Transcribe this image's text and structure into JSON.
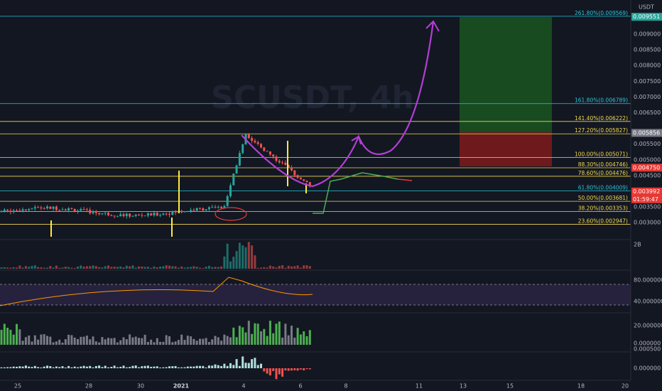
{
  "header": {
    "currency": "USDT",
    "watermark": "SCUSDT, 4h"
  },
  "price_axis": [
    {
      "value": 0.009,
      "label": "0.009000"
    },
    {
      "value": 0.0085,
      "label": "0.008500"
    },
    {
      "value": 0.008,
      "label": "0.008000"
    },
    {
      "value": 0.0075,
      "label": "0.007500"
    },
    {
      "value": 0.007,
      "label": "0.007000"
    },
    {
      "value": 0.0065,
      "label": "0.006500"
    },
    {
      "value": 0.0055,
      "label": "0.005500"
    },
    {
      "value": 0.005,
      "label": "0.005000"
    },
    {
      "value": 0.0045,
      "label": "0.004500"
    },
    {
      "value": 0.0035,
      "label": "0.003500"
    },
    {
      "value": 0.003,
      "label": "0.003000"
    }
  ],
  "price_tags": [
    {
      "price": 0.009551,
      "label": "0.009551",
      "color": "#26a69a"
    },
    {
      "price": 0.005856,
      "label": "0.005856",
      "color": "#787b86"
    },
    {
      "price": 0.00475,
      "label": "0.004750",
      "color": "#e53935"
    },
    {
      "price": 0.003992,
      "label": "0.003992",
      "color": "#e53935",
      "countdown": "01:59:47"
    }
  ],
  "fib_levels": [
    {
      "label": "261.80%(0.009569)",
      "price": 0.009569,
      "color": "#26c6da"
    },
    {
      "label": "161.80%(0.006789)",
      "price": 0.006789,
      "color": "#26c6da"
    },
    {
      "label": "141.40%(0.006222)",
      "price": 0.006222,
      "color": "#f2d94e"
    },
    {
      "label": "127.20%(0.005827)",
      "price": 0.005827,
      "color": "#f2d94e"
    },
    {
      "label": "100.00%(0.005071)",
      "price": 0.005071,
      "color": "#f2d94e"
    },
    {
      "label": "88.30%(0.004746)",
      "price": 0.004746,
      "color": "#f2d94e"
    },
    {
      "label": "78.60%(0.004476)",
      "price": 0.004476,
      "color": "#f2d94e"
    },
    {
      "label": "61.80%(0.004009)",
      "price": 0.004009,
      "color": "#26c6da"
    },
    {
      "label": "50.00%(0.003681)",
      "price": 0.003681,
      "color": "#f2d94e"
    },
    {
      "label": "38.20%(0.003353)",
      "price": 0.003353,
      "color": "#f2d94e"
    },
    {
      "label": "23.60%(0.002947)",
      "price": 0.002947,
      "color": "#f2d94e"
    }
  ],
  "pane_axes": {
    "volume": "2B",
    "rsi": [
      "80.000000",
      "40.000000"
    ],
    "histogram": [
      "20.000000",
      "0.000000"
    ],
    "macd": [
      "0.000500",
      "0.000000"
    ]
  },
  "time_axis": [
    "25",
    "28",
    "30",
    "2021",
    "4",
    "6",
    "8",
    "11",
    "13",
    "15",
    "18",
    "20"
  ]
}
